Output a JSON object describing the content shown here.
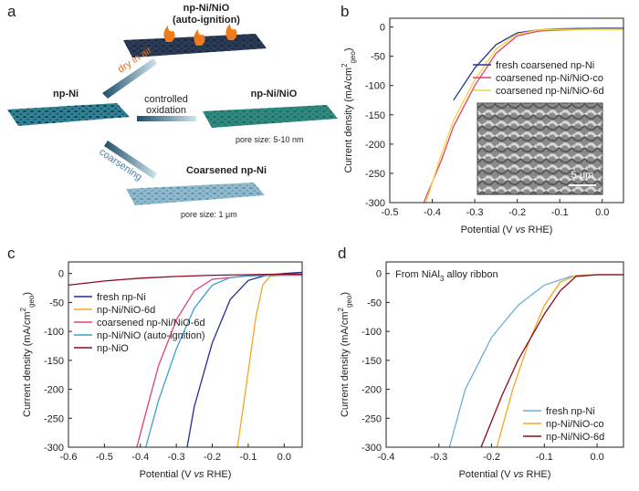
{
  "schematic": {
    "panel_label": "a",
    "start": "np-Ni",
    "top_title": "np-Ni/NiO",
    "top_subtitle": "(auto-ignition)",
    "arrow_up": "dry in air",
    "arrow_mid_1": "controlled",
    "arrow_mid_2": "oxidation",
    "mid_title": "np-Ni/NiO",
    "mid_note": "pore size: 5-10 nm",
    "arrow_down": "coarsening",
    "bottom_title": "Coarsened np-Ni",
    "bottom_note": "pore size: 1 μm"
  },
  "chart_data": [
    {
      "type": "line",
      "panel_label": "b",
      "x_label": {
        "pre": "Potential (V ",
        "em": "vs",
        "post": " RHE)"
      },
      "y_label": {
        "pre": "Current density (mA/cm",
        "sup": "2",
        "sub": "geo",
        "post": ")"
      },
      "xlim": [
        -0.5,
        0.05
      ],
      "xticks": [
        -0.5,
        -0.4,
        -0.3,
        -0.2,
        -0.1,
        {
          "value": 0,
          "label": "0.0"
        }
      ],
      "ylim": [
        -300,
        15
      ],
      "yticks": [
        0,
        -50,
        -100,
        -150,
        -200,
        -250,
        -300
      ],
      "legend_position": "center right",
      "inset_scale_bar": "5 μm",
      "series": [
        {
          "name": "fresh coarsened np-Ni",
          "color": "#1f3a93",
          "x": [
            -0.35,
            -0.3,
            -0.25,
            -0.2,
            -0.15,
            -0.1,
            0,
            0.05
          ],
          "values": [
            -125,
            -70,
            -30,
            -10,
            -5,
            -3,
            -2,
            -2
          ]
        },
        {
          "name": "coarsened np-Ni/NiO-co",
          "color": "#e0407a",
          "x": [
            -0.42,
            -0.38,
            -0.35,
            -0.3,
            -0.25,
            -0.2,
            -0.15,
            -0.1,
            0,
            0.05
          ],
          "values": [
            -300,
            -230,
            -170,
            -100,
            -45,
            -15,
            -7,
            -5,
            -3,
            -3
          ]
        },
        {
          "name": "coarsened np-Ni/NiO-6d",
          "color": "#f2d33a",
          "x": [
            -0.415,
            -0.38,
            -0.35,
            -0.3,
            -0.25,
            -0.2,
            -0.15,
            -0.1,
            0,
            0.05
          ],
          "values": [
            -300,
            -220,
            -160,
            -90,
            -38,
            -12,
            -5,
            -4,
            -4,
            -4
          ]
        }
      ]
    },
    {
      "type": "line",
      "panel_label": "c",
      "x_label": {
        "pre": "Potential (V ",
        "em": "vs",
        "post": " RHE)"
      },
      "y_label": {
        "pre": "Current density (mA/cm",
        "sup": "2",
        "sub": "geo",
        "post": ")"
      },
      "xlim": [
        -0.6,
        0.05
      ],
      "xticks": [
        -0.6,
        -0.5,
        -0.4,
        -0.3,
        -0.2,
        -0.1,
        {
          "value": 0,
          "label": "0.0"
        }
      ],
      "ylim": [
        -300,
        20
      ],
      "yticks": [
        0,
        -50,
        -100,
        -150,
        -200,
        -250,
        -300
      ],
      "legend_position": "upper left",
      "series": [
        {
          "name": "fresh np-Ni",
          "color": "#1f2f8f",
          "x": [
            -0.27,
            -0.25,
            -0.2,
            -0.15,
            -0.1,
            -0.05,
            0,
            0.05
          ],
          "values": [
            -300,
            -230,
            -120,
            -45,
            -12,
            -3,
            0,
            2
          ]
        },
        {
          "name": "np-Ni/NiO-6d",
          "color": "#f5a623",
          "x": [
            -0.13,
            -0.1,
            -0.08,
            -0.06,
            -0.04,
            0,
            0.05
          ],
          "values": [
            -300,
            -170,
            -80,
            -20,
            -5,
            -2,
            -2
          ]
        },
        {
          "name": "coarsened np-Ni/NiO-6d",
          "color": "#e0407a",
          "x": [
            -0.41,
            -0.38,
            -0.35,
            -0.3,
            -0.25,
            -0.2,
            -0.1,
            0,
            0.05
          ],
          "values": [
            -300,
            -230,
            -160,
            -80,
            -30,
            -10,
            -4,
            -3,
            -3
          ]
        },
        {
          "name": "np-Ni/NiO (auto-ignition)",
          "color": "#3a9fd0",
          "x": [
            -0.385,
            -0.35,
            -0.3,
            -0.25,
            -0.2,
            -0.15,
            -0.1,
            0,
            0.05
          ],
          "values": [
            -300,
            -220,
            -130,
            -60,
            -20,
            -7,
            -4,
            -3,
            -3
          ]
        },
        {
          "name": "np-NiO",
          "color": "#8b0a1e",
          "x": [
            -0.6,
            -0.5,
            -0.4,
            -0.3,
            -0.2,
            -0.1,
            0,
            0.05
          ],
          "values": [
            -20,
            -13,
            -8,
            -5,
            -3,
            -2,
            -1,
            -1
          ]
        }
      ]
    },
    {
      "type": "line",
      "panel_label": "d",
      "x_label": {
        "pre": "Potential (V ",
        "em": "vs",
        "post": " RHE)"
      },
      "y_label": {
        "pre": "Current density (mA/cm",
        "sup": "2",
        "sub": "geo",
        "post": ")"
      },
      "annotation": {
        "pre": "From NiAl",
        "sub": "3",
        "post": " alloy ribbon"
      },
      "xlim": [
        -0.4,
        0.05
      ],
      "xticks": [
        -0.4,
        -0.3,
        -0.2,
        -0.1,
        {
          "value": 0,
          "label": "0.0"
        }
      ],
      "ylim": [
        -300,
        20
      ],
      "yticks": [
        0,
        -50,
        -100,
        -150,
        -200,
        -250,
        -300
      ],
      "legend_position": "lower right",
      "series": [
        {
          "name": "fresh np-Ni",
          "color": "#6aaed6",
          "x": [
            -0.28,
            -0.25,
            -0.2,
            -0.15,
            -0.1,
            -0.05,
            0,
            0.05
          ],
          "values": [
            -300,
            -200,
            -110,
            -55,
            -20,
            -5,
            -2,
            -2
          ]
        },
        {
          "name": "np-Ni/NiO-co",
          "color": "#f5a623",
          "x": [
            -0.19,
            -0.16,
            -0.13,
            -0.1,
            -0.07,
            -0.04,
            0,
            0.05
          ],
          "values": [
            -300,
            -200,
            -120,
            -55,
            -15,
            -3,
            -2,
            -2
          ]
        },
        {
          "name": "np-Ni/NiO-6d",
          "color": "#8b0a1e",
          "x": [
            -0.22,
            -0.18,
            -0.15,
            -0.1,
            -0.07,
            -0.04,
            0,
            0.05
          ],
          "values": [
            -300,
            -210,
            -150,
            -70,
            -30,
            -5,
            -2,
            -2
          ]
        }
      ]
    }
  ]
}
